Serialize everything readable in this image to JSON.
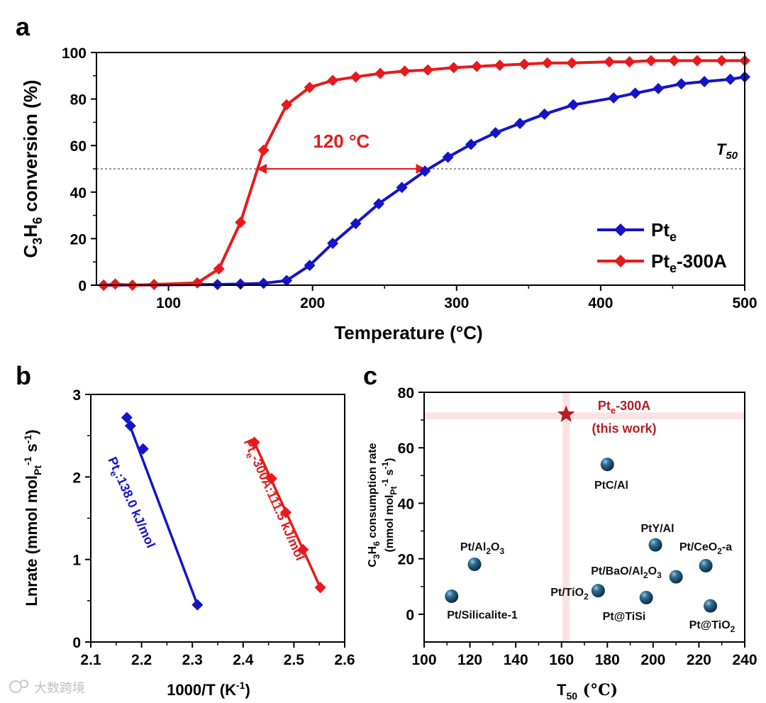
{
  "watermark": "大数跨境",
  "colors": {
    "pt_e": "#1414c8",
    "pt_e_300A": "#e8191c",
    "sphere": "#1d4e6e",
    "star": "#b41e24",
    "arrow": "#e8191c",
    "highlight": "#fbe3e3"
  },
  "chart_data": [
    {
      "id": "a",
      "type": "line",
      "panel_label": "a",
      "xlabel": "Temperature (°C)",
      "ylabel_parts": [
        "C",
        "3",
        "H",
        "6",
        " conversion (%)"
      ],
      "xlim": [
        50,
        500
      ],
      "ylim": [
        0,
        100
      ],
      "xticks": [
        100,
        200,
        300,
        400,
        500
      ],
      "yticks": [
        0,
        20,
        40,
        60,
        80,
        100
      ],
      "series": [
        {
          "name": "Pte",
          "legend_main": "Pt",
          "legend_sub": "e",
          "legend_suffix": "",
          "color": "#1414c8",
          "x": [
            55,
            134,
            150,
            166,
            182,
            198,
            214,
            230,
            246,
            262,
            278,
            294,
            310,
            327,
            344,
            361,
            381,
            409,
            424,
            440,
            456,
            472,
            490,
            500
          ],
          "y": [
            0,
            0.3,
            0.5,
            0.8,
            2,
            8.5,
            18,
            26.5,
            35,
            42,
            49,
            55,
            60.5,
            65.5,
            69.5,
            73.5,
            77.5,
            80.5,
            82.5,
            84.5,
            86.5,
            87.5,
            88.5,
            89.5
          ]
        },
        {
          "name": "Pte-300A",
          "legend_main": "Pt",
          "legend_sub": "e",
          "legend_suffix": "-300A",
          "color": "#e8191c",
          "x": [
            55,
            63,
            75,
            90,
            120,
            135,
            150,
            166,
            182,
            198,
            214,
            230,
            247,
            264,
            280,
            298,
            314,
            330,
            347,
            363,
            380,
            406,
            420,
            435,
            451,
            467,
            484,
            500
          ],
          "y": [
            0,
            0.5,
            0,
            0.3,
            1,
            7,
            27,
            58,
            77.5,
            85,
            88,
            89.5,
            91,
            92,
            92.5,
            93.5,
            94,
            94.5,
            95,
            95.5,
            95.5,
            96,
            96,
            96.5,
            96.5,
            96.5,
            96.5,
            96.5
          ]
        }
      ],
      "reference_line": {
        "y": 50,
        "label": "T",
        "label_sub": "50"
      },
      "annotation": {
        "text": "120 °C",
        "x_from": 160,
        "x_to": 280,
        "y": 50
      }
    },
    {
      "id": "b",
      "type": "scatter",
      "panel_label": "b",
      "xlabel": "1000/T (K",
      "xlabel_sup": "-1",
      "xlabel_end": ")",
      "ylabel": "Lnrate (mmol mol",
      "ylabel_sub": "Pt",
      "ylabel_sup": "-1",
      "ylabel_end": " s",
      "ylabel_sup2": "-1",
      "ylabel_close": ")",
      "xlim": [
        2.1,
        2.6
      ],
      "ylim": [
        0,
        3
      ],
      "xticks": [
        "2.1",
        "2.2",
        "2.3",
        "2.4",
        "2.5",
        "2.6"
      ],
      "yticks": [
        "0",
        "1",
        "2",
        "3"
      ],
      "series": [
        {
          "name": "Pte",
          "color": "#1414c8",
          "x": [
            2.171,
            2.178,
            2.203,
            2.31
          ],
          "y": [
            2.72,
            2.62,
            2.34,
            0.45
          ],
          "fit": [
            [
              2.171,
              2.72
            ],
            [
              2.31,
              0.45
            ]
          ],
          "label_main": "Pt",
          "label_sub": "e",
          "label_rest": ":138.0 kJ/mol"
        },
        {
          "name": "Pte-300A",
          "color": "#e8191c",
          "x": [
            2.422,
            2.456,
            2.484,
            2.518,
            2.552
          ],
          "y": [
            2.42,
            1.98,
            1.57,
            1.12,
            0.66
          ],
          "fit": [
            [
              2.422,
              2.42
            ],
            [
              2.552,
              0.66
            ]
          ],
          "label_main": "Pt",
          "label_sub": "e",
          "label_rest": "-300A:111.5 kJ/mol"
        }
      ]
    },
    {
      "id": "c",
      "type": "scatter",
      "panel_label": "c",
      "xlabel": "T",
      "xlabel_sub": "50",
      "xlabel_end": " (°C)",
      "ylabel_parts": [
        "C",
        "3",
        "H",
        "6",
        " consumption rate"
      ],
      "ylabel2": "(mmol mol",
      "ylabel2_sub": "Pt",
      "ylabel2_sup": "-1",
      "ylabel2_end": " s",
      "ylabel2_sup2": "-1",
      "ylabel2_close": ")",
      "xlim": [
        100,
        240
      ],
      "ylim": [
        -10,
        80
      ],
      "xticks": [
        100,
        120,
        140,
        160,
        180,
        200,
        220,
        240
      ],
      "yticks": [
        0,
        20,
        40,
        60,
        80
      ],
      "highlight": {
        "x": 162,
        "y": 71.5
      },
      "points": [
        {
          "name": "Pt/Silicalite-1",
          "x": 112,
          "y": 6.5
        },
        {
          "name": "Pt/Al2O3",
          "x": 122,
          "y": 18
        },
        {
          "name": "PtC/Al",
          "x": 180,
          "y": 54
        },
        {
          "name": "Pt/TiO2",
          "x": 176,
          "y": 8.5
        },
        {
          "name": "PtY/Al",
          "x": 201,
          "y": 25
        },
        {
          "name": "Pt@TiSi",
          "x": 197,
          "y": 6
        },
        {
          "name": "Pt/BaO/Al2O3",
          "x": 210,
          "y": 13.5
        },
        {
          "name": "Pt/CeO2-a",
          "x": 223,
          "y": 17.5
        },
        {
          "name": "Pt@TiO2",
          "x": 225,
          "y": 3
        }
      ],
      "labels": {
        "silicalite": "Pt/Silicalite-1",
        "al2o3_main": "Pt/Al",
        "al2o3_sub1": "2",
        "al2o3_o": "O",
        "al2o3_sub2": "3",
        "ptc": "PtC/Al",
        "tio2_main": "Pt/TiO",
        "tio2_sub": "2",
        "pty": "PtY/Al",
        "tisi": "Pt@TiSi",
        "bao_main": "Pt/BaO/Al",
        "bao_sub1": "2",
        "bao_o": "O",
        "bao_sub2": "3",
        "ceo2_main": "Pt/CeO",
        "ceo2_sub": "2",
        "ceo2_end": "-a",
        "attio2_main": "Pt@TiO",
        "attio2_sub": "2"
      },
      "star": {
        "name": "Pte-300A (this work)",
        "x": 162,
        "y": 72,
        "label_main": "Pt",
        "label_sub": "e",
        "label_suffix": "-300A",
        "label_line2": "(this work)"
      }
    }
  ]
}
